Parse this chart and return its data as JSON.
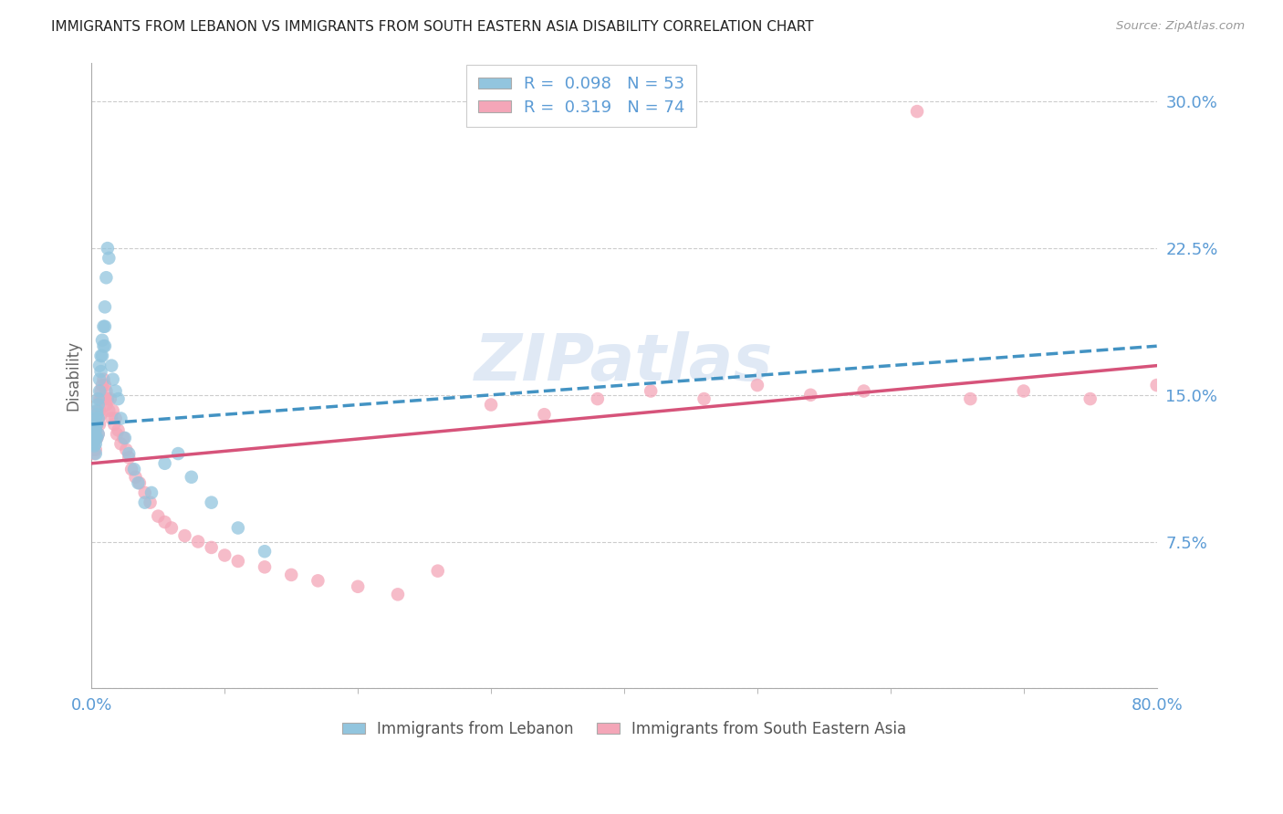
{
  "title": "IMMIGRANTS FROM LEBANON VS IMMIGRANTS FROM SOUTH EASTERN ASIA DISABILITY CORRELATION CHART",
  "source": "Source: ZipAtlas.com",
  "ylabel": "Disability",
  "ytick_positions": [
    0.0,
    0.075,
    0.15,
    0.225,
    0.3
  ],
  "ytick_labels": [
    "",
    "7.5%",
    "15.0%",
    "22.5%",
    "30.0%"
  ],
  "xlim": [
    0.0,
    0.8
  ],
  "ylim": [
    0.0,
    0.32
  ],
  "color_blue": "#92c5de",
  "color_pink": "#f4a6b8",
  "color_blue_line": "#4393c3",
  "color_pink_line": "#d6537a",
  "color_tick_labels": "#5b9bd5",
  "watermark": "ZIPatlas",
  "leb_trend_x0": 0.0,
  "leb_trend_x1": 0.8,
  "leb_trend_y0": 0.135,
  "leb_trend_y1": 0.175,
  "sea_trend_y0": 0.115,
  "sea_trend_y1": 0.165,
  "lebanon_x": [
    0.001,
    0.001,
    0.001,
    0.002,
    0.002,
    0.002,
    0.002,
    0.003,
    0.003,
    0.003,
    0.003,
    0.003,
    0.003,
    0.004,
    0.004,
    0.004,
    0.004,
    0.005,
    0.005,
    0.005,
    0.005,
    0.006,
    0.006,
    0.006,
    0.007,
    0.007,
    0.008,
    0.008,
    0.009,
    0.009,
    0.01,
    0.01,
    0.01,
    0.011,
    0.012,
    0.013,
    0.015,
    0.016,
    0.018,
    0.02,
    0.022,
    0.025,
    0.028,
    0.032,
    0.035,
    0.04,
    0.045,
    0.055,
    0.065,
    0.075,
    0.09,
    0.11,
    0.13
  ],
  "lebanon_y": [
    0.13,
    0.128,
    0.125,
    0.133,
    0.13,
    0.127,
    0.124,
    0.138,
    0.135,
    0.132,
    0.128,
    0.125,
    0.12,
    0.142,
    0.14,
    0.135,
    0.128,
    0.148,
    0.145,
    0.138,
    0.13,
    0.165,
    0.158,
    0.152,
    0.17,
    0.162,
    0.178,
    0.17,
    0.185,
    0.175,
    0.195,
    0.185,
    0.175,
    0.21,
    0.225,
    0.22,
    0.165,
    0.158,
    0.152,
    0.148,
    0.138,
    0.128,
    0.12,
    0.112,
    0.105,
    0.095,
    0.1,
    0.115,
    0.12,
    0.108,
    0.095,
    0.082,
    0.07
  ],
  "sea_x": [
    0.001,
    0.001,
    0.002,
    0.002,
    0.002,
    0.003,
    0.003,
    0.003,
    0.003,
    0.004,
    0.004,
    0.004,
    0.005,
    0.005,
    0.005,
    0.006,
    0.006,
    0.006,
    0.007,
    0.007,
    0.007,
    0.008,
    0.008,
    0.009,
    0.009,
    0.01,
    0.01,
    0.011,
    0.011,
    0.012,
    0.013,
    0.014,
    0.015,
    0.016,
    0.017,
    0.018,
    0.019,
    0.02,
    0.022,
    0.024,
    0.026,
    0.028,
    0.03,
    0.033,
    0.036,
    0.04,
    0.044,
    0.05,
    0.055,
    0.06,
    0.07,
    0.08,
    0.09,
    0.1,
    0.11,
    0.13,
    0.15,
    0.17,
    0.2,
    0.23,
    0.26,
    0.3,
    0.34,
    0.38,
    0.42,
    0.46,
    0.5,
    0.54,
    0.58,
    0.62,
    0.66,
    0.7,
    0.75,
    0.8
  ],
  "sea_y": [
    0.128,
    0.122,
    0.13,
    0.126,
    0.12,
    0.135,
    0.132,
    0.128,
    0.122,
    0.138,
    0.135,
    0.128,
    0.142,
    0.138,
    0.13,
    0.148,
    0.142,
    0.135,
    0.152,
    0.148,
    0.14,
    0.155,
    0.148,
    0.158,
    0.148,
    0.155,
    0.148,
    0.152,
    0.145,
    0.148,
    0.142,
    0.148,
    0.138,
    0.142,
    0.135,
    0.138,
    0.13,
    0.132,
    0.125,
    0.128,
    0.122,
    0.118,
    0.112,
    0.108,
    0.105,
    0.1,
    0.095,
    0.088,
    0.085,
    0.082,
    0.078,
    0.075,
    0.072,
    0.068,
    0.065,
    0.062,
    0.058,
    0.055,
    0.052,
    0.048,
    0.06,
    0.145,
    0.14,
    0.148,
    0.152,
    0.148,
    0.155,
    0.15,
    0.152,
    0.295,
    0.148,
    0.152,
    0.148,
    0.155
  ]
}
